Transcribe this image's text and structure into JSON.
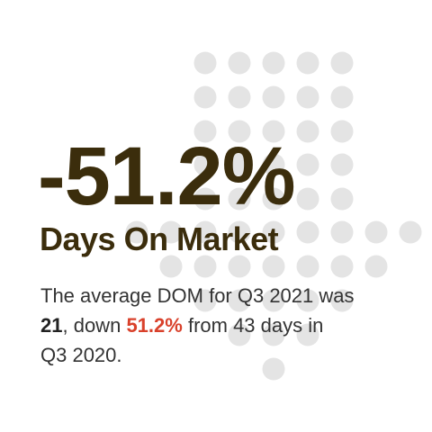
{
  "headline": {
    "value_text": "-51.2%",
    "label": "Days On Market"
  },
  "description": {
    "line1": "The average DOM for Q3 2021 was",
    "line2": {
      "current": "21",
      "text_a": ", down",
      "change": "51.2%",
      "text_b": "from 43 days in"
    },
    "line3": "Q3 2020."
  }
}
